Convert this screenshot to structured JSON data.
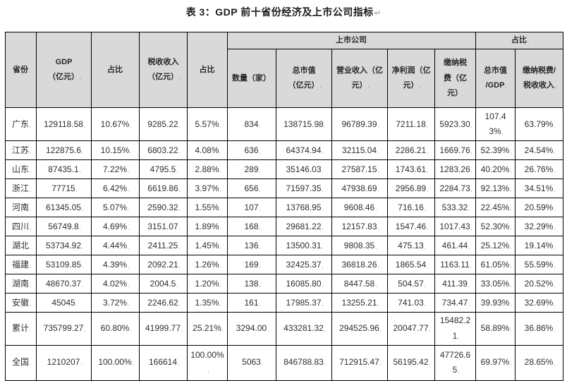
{
  "title": {
    "text": "表 3：GDP 前十省份经济及上市公司指标",
    "mark": "↵"
  },
  "colors": {
    "header_bg": "#d9d9d9",
    "border": "#000000",
    "text": "#2e2e2e"
  },
  "table": {
    "header": {
      "province": "省份",
      "gdp": "GDP\n（亿元）",
      "gdp_share": "占比",
      "tax": "税收收入\n（亿元）",
      "tax_share": "占比",
      "listed_group": "上市公司",
      "share_group": "占比",
      "count": "数量（家）",
      "mcap": "总市值\n（亿元）",
      "revenue": "营业收入（亿\n元）",
      "profit": "净利润（亿\n元）",
      "tax_paid": "缴纳税\n费（亿\n元）",
      "mcap_gdp": "总市值\n/GDP",
      "taxpaid_tax": "缴纳税费/\n税收收入"
    },
    "rows": [
      {
        "name": "广东",
        "gdp": "129118.58",
        "gdp_share": "10.67%",
        "tax": "9285.22",
        "tax_share": "5.57%",
        "count": "834",
        "mcap": "138715.98",
        "revenue": "96789.39",
        "profit": "7211.18",
        "tax_paid": "5923.30",
        "mcap_gdp": "107.43%",
        "taxpaid_tax": "63.79%"
      },
      {
        "name": "江苏",
        "gdp": "122875.6",
        "gdp_share": "10.15%",
        "tax": "6803.22",
        "tax_share": "4.08%",
        "count": "636",
        "mcap": "64374.94",
        "revenue": "32115.04",
        "profit": "2286.21",
        "tax_paid": "1669.76",
        "mcap_gdp": "52.39%",
        "taxpaid_tax": "24.54%"
      },
      {
        "name": "山东",
        "gdp": "87435.1",
        "gdp_share": "7.22%",
        "tax": "4795.5",
        "tax_share": "2.88%",
        "count": "289",
        "mcap": "35146.03",
        "revenue": "27587.15",
        "profit": "1743.61",
        "tax_paid": "1283.26",
        "mcap_gdp": "40.20%",
        "taxpaid_tax": "26.76%"
      },
      {
        "name": "浙江",
        "gdp": "77715",
        "gdp_share": "6.42%",
        "tax": "6619.86",
        "tax_share": "3.97%",
        "count": "656",
        "mcap": "71597.35",
        "revenue": "47938.69",
        "profit": "2956.89",
        "tax_paid": "2284.73",
        "mcap_gdp": "92.13%",
        "taxpaid_tax": "34.51%"
      },
      {
        "name": "河南",
        "gdp": "61345.05",
        "gdp_share": "5.07%",
        "tax": "2590.32",
        "tax_share": "1.55%",
        "count": "107",
        "mcap": "13768.95",
        "revenue": "9608.46",
        "profit": "716.16",
        "tax_paid": "533.32",
        "mcap_gdp": "22.45%",
        "taxpaid_tax": "20.59%"
      },
      {
        "name": "四川",
        "gdp": "56749.8",
        "gdp_share": "4.69%",
        "tax": "3151.07",
        "tax_share": "1.89%",
        "count": "168",
        "mcap": "29681.22",
        "revenue": "12157.83",
        "profit": "1547.46",
        "tax_paid": "1017.43",
        "mcap_gdp": "52.30%",
        "taxpaid_tax": "32.29%"
      },
      {
        "name": "湖北",
        "gdp": "53734.92",
        "gdp_share": "4.44%",
        "tax": "2411.25",
        "tax_share": "1.45%",
        "count": "136",
        "mcap": "13500.31",
        "revenue": "9808.35",
        "profit": "475.13",
        "tax_paid": "461.44",
        "mcap_gdp": "25.12%",
        "taxpaid_tax": "19.14%"
      },
      {
        "name": "福建",
        "gdp": "53109.85",
        "gdp_share": "4.39%",
        "tax": "2092.21",
        "tax_share": "1.26%",
        "count": "169",
        "mcap": "32425.37",
        "revenue": "36818.26",
        "profit": "1865.54",
        "tax_paid": "1163.11",
        "mcap_gdp": "61.05%",
        "taxpaid_tax": "55.59%"
      },
      {
        "name": "湖南",
        "gdp": "48670.37",
        "gdp_share": "4.02%",
        "tax": "2004.5",
        "tax_share": "1.20%",
        "count": "138",
        "mcap": "16085.80",
        "revenue": "8447.58",
        "profit": "504.57",
        "tax_paid": "411.39",
        "mcap_gdp": "33.05%",
        "taxpaid_tax": "20.52%"
      },
      {
        "name": "安徽",
        "gdp": "45045",
        "gdp_share": "3.72%",
        "tax": "2246.62",
        "tax_share": "1.35%",
        "count": "161",
        "mcap": "17985.37",
        "revenue": "13255.21",
        "profit": "741.03",
        "tax_paid": "734.47",
        "mcap_gdp": "39.93%",
        "taxpaid_tax": "32.69%"
      },
      {
        "name": "累计",
        "gdp": "735799.27",
        "gdp_share": "60.80%",
        "tax": "41999.77",
        "tax_share": "25.21%",
        "count": "3294.00",
        "mcap": "433281.32",
        "revenue": "294525.96",
        "profit": "20047.77",
        "tax_paid": "15482.21",
        "mcap_gdp": "58.89%",
        "taxpaid_tax": "36.86%"
      },
      {
        "name": "全国",
        "gdp": "1210207",
        "gdp_share": "100.00%",
        "tax": "166614",
        "tax_share": "100.00%",
        "count": "5063",
        "mcap": "846788.83",
        "revenue": "712915.47",
        "profit": "56195.42",
        "tax_paid": "47726.65",
        "mcap_gdp": "69.97%",
        "taxpaid_tax": "28.65%"
      }
    ]
  }
}
